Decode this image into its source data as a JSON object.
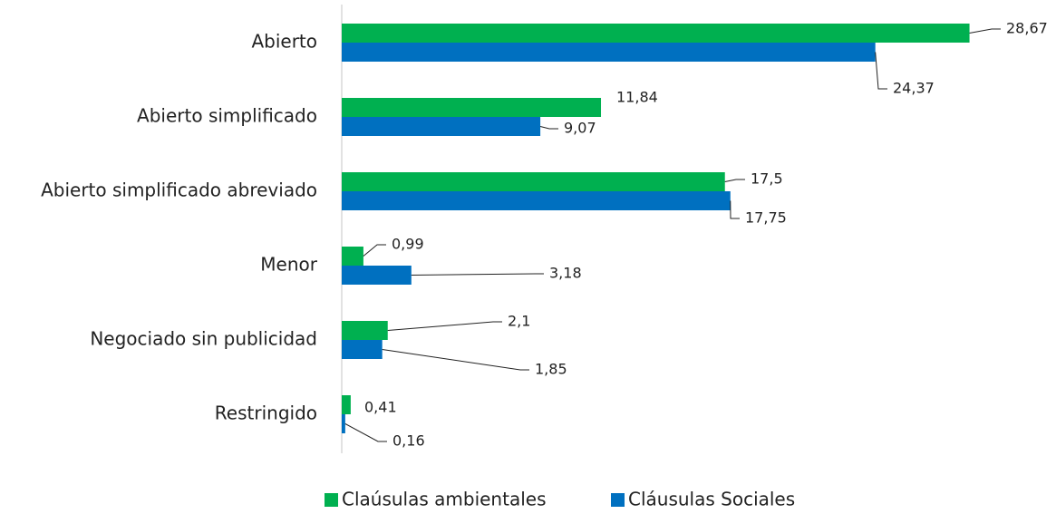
{
  "chart_data": {
    "type": "barh",
    "categories": [
      "Abierto",
      "Abierto simplificado",
      "Abierto simplificado abreviado",
      "Menor",
      "Negociado sin publicidad",
      "Restringido"
    ],
    "series": [
      {
        "name": "Claúsulas ambientales",
        "color": "#00b050",
        "values": [
          28.67,
          11.84,
          17.5,
          0.99,
          2.1,
          0.41
        ],
        "value_labels": [
          "28,67",
          "11,84",
          "17,5",
          "0,99",
          "2,1",
          "0,41"
        ]
      },
      {
        "name": "Cláusulas Sociales",
        "color": "#0070c0",
        "values": [
          24.37,
          9.07,
          17.75,
          3.18,
          1.85,
          0.16
        ],
        "value_labels": [
          "24,37",
          "9,07",
          "17,75",
          "3,18",
          "1,85",
          "0,16"
        ]
      }
    ],
    "xlim": [
      0,
      32
    ],
    "legend": "bottom"
  }
}
